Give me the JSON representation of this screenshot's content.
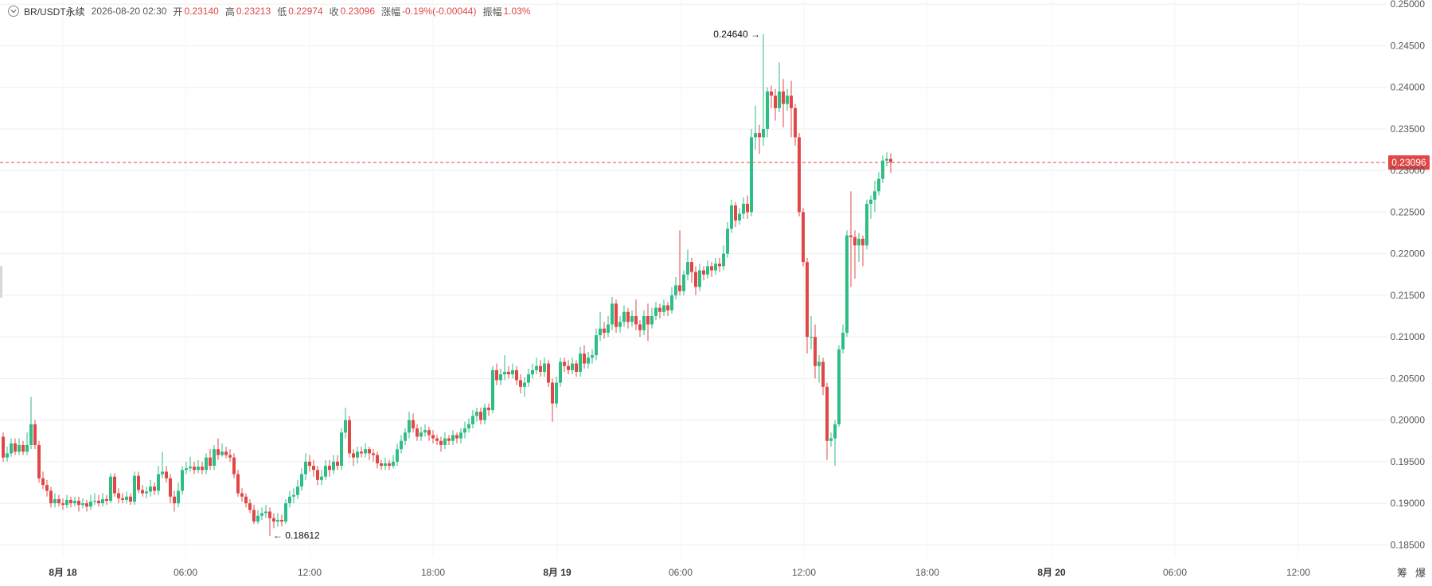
{
  "header": {
    "symbol": "BR/USDT永续",
    "datetime": "2026-08-20 02:30",
    "open_label": "开",
    "open_value": "0.23140",
    "high_label": "高",
    "high_value": "0.23213",
    "low_label": "低",
    "low_value": "0.22974",
    "close_label": "收",
    "close_value": "0.23096",
    "change_label": "涨幅",
    "change_value": "-0.19%(-0.00044)",
    "amplitude_label": "振幅",
    "amplitude_value": "1.03%"
  },
  "footer": {
    "item1": "筹",
    "item2": "爆"
  },
  "colors": {
    "up": "#2ebd85",
    "down": "#e04848",
    "grid": "#eeeeee",
    "axis_text": "#555555"
  },
  "chart_data": {
    "type": "candlestick",
    "ylim": [
      0.1835,
      0.2505
    ],
    "y_ticks": [
      0.185,
      0.19,
      0.195,
      0.2,
      0.205,
      0.21,
      0.215,
      0.22,
      0.225,
      0.23,
      0.235,
      0.24,
      0.245,
      0.25
    ],
    "y_tick_labels": [
      "0.18500",
      "0.19000",
      "0.19500",
      "0.20000",
      "0.20500",
      "0.21000",
      "0.21500",
      "0.22000",
      "0.22500",
      "0.23000",
      "0.23500",
      "0.24000",
      "0.24500",
      "0.25000"
    ],
    "x_ticks": [
      "8月 18",
      "06:00",
      "12:00",
      "18:00",
      "8月 19",
      "06:00",
      "12:00",
      "18:00",
      "8月 20",
      "06:00",
      "12:00"
    ],
    "x_tick_bold": [
      true,
      false,
      false,
      false,
      true,
      false,
      false,
      false,
      true,
      false,
      false
    ],
    "current_price_label": "0.23096",
    "current_price": 0.23096,
    "annotations": [
      {
        "label": "0.24640",
        "value": 0.2464,
        "arrow": "→"
      },
      {
        "label": "0.18612",
        "value": 0.18612,
        "arrow": "←"
      }
    ],
    "candles": [
      [
        0.198,
        0.1955,
        0.1985,
        0.195
      ],
      [
        0.1955,
        0.196,
        0.1968,
        0.195
      ],
      [
        0.196,
        0.1972,
        0.1978,
        0.1956
      ],
      [
        0.1972,
        0.1962,
        0.1978,
        0.1958
      ],
      [
        0.1962,
        0.197,
        0.1978,
        0.1958
      ],
      [
        0.197,
        0.1962,
        0.1975,
        0.1958
      ],
      [
        0.1962,
        0.197,
        0.1985,
        0.1958
      ],
      [
        0.197,
        0.1995,
        0.2028,
        0.1965
      ],
      [
        0.1995,
        0.197,
        0.2,
        0.1965
      ],
      [
        0.197,
        0.193,
        0.1975,
        0.1925
      ],
      [
        0.193,
        0.1922,
        0.1938,
        0.1917
      ],
      [
        0.1922,
        0.1915,
        0.1928,
        0.1908
      ],
      [
        0.1915,
        0.19,
        0.192,
        0.1895
      ],
      [
        0.19,
        0.1905,
        0.1912,
        0.1895
      ],
      [
        0.1905,
        0.19,
        0.191,
        0.1896
      ],
      [
        0.19,
        0.1898,
        0.1906,
        0.1892
      ],
      [
        0.1898,
        0.1904,
        0.191,
        0.1894
      ],
      [
        0.1904,
        0.19,
        0.1908,
        0.1895
      ],
      [
        0.19,
        0.1903,
        0.1908,
        0.1896
      ],
      [
        0.1903,
        0.1898,
        0.1908,
        0.189
      ],
      [
        0.1898,
        0.19,
        0.1906,
        0.1894
      ],
      [
        0.19,
        0.1896,
        0.1904,
        0.189
      ],
      [
        0.1896,
        0.1902,
        0.191,
        0.1892
      ],
      [
        0.1902,
        0.1903,
        0.1912,
        0.1898
      ],
      [
        0.1903,
        0.19,
        0.191,
        0.1896
      ],
      [
        0.19,
        0.1905,
        0.1912,
        0.1896
      ],
      [
        0.1905,
        0.1903,
        0.191,
        0.1898
      ],
      [
        0.1903,
        0.1932,
        0.1936,
        0.19
      ],
      [
        0.1932,
        0.1912,
        0.1936,
        0.1908
      ],
      [
        0.1912,
        0.1906,
        0.1918,
        0.19
      ],
      [
        0.1906,
        0.1904,
        0.1912,
        0.19
      ],
      [
        0.1904,
        0.1908,
        0.1914,
        0.19
      ],
      [
        0.1908,
        0.1902,
        0.1912,
        0.1898
      ],
      [
        0.1902,
        0.1933,
        0.1938,
        0.1898
      ],
      [
        0.1933,
        0.1916,
        0.1938,
        0.1912
      ],
      [
        0.1916,
        0.1912,
        0.1922,
        0.1908
      ],
      [
        0.1912,
        0.1914,
        0.192,
        0.1906
      ],
      [
        0.1914,
        0.192,
        0.1928,
        0.1908
      ],
      [
        0.192,
        0.1915,
        0.1925,
        0.191
      ],
      [
        0.1915,
        0.1935,
        0.1945,
        0.191
      ],
      [
        0.1935,
        0.1938,
        0.1962,
        0.193
      ],
      [
        0.1938,
        0.193,
        0.1945,
        0.1925
      ],
      [
        0.193,
        0.1908,
        0.1935,
        0.19
      ],
      [
        0.1908,
        0.19,
        0.1915,
        0.189
      ],
      [
        0.19,
        0.1915,
        0.1925,
        0.1895
      ],
      [
        0.1915,
        0.194,
        0.1945,
        0.191
      ],
      [
        0.194,
        0.1942,
        0.195,
        0.1935
      ],
      [
        0.1942,
        0.1944,
        0.1956,
        0.1938
      ],
      [
        0.1944,
        0.194,
        0.195,
        0.1935
      ],
      [
        0.194,
        0.1944,
        0.1952,
        0.1936
      ],
      [
        0.1944,
        0.194,
        0.195,
        0.1935
      ],
      [
        0.194,
        0.1955,
        0.196,
        0.1935
      ],
      [
        0.1955,
        0.1945,
        0.1965,
        0.194
      ],
      [
        0.1945,
        0.1965,
        0.197,
        0.194
      ],
      [
        0.1965,
        0.1958,
        0.1978,
        0.1952
      ],
      [
        0.1958,
        0.1962,
        0.1972,
        0.1956
      ],
      [
        0.1962,
        0.1958,
        0.1968,
        0.1954
      ],
      [
        0.1958,
        0.1955,
        0.1965,
        0.195
      ],
      [
        0.1955,
        0.1935,
        0.196,
        0.193
      ],
      [
        0.1935,
        0.1912,
        0.194,
        0.1908
      ],
      [
        0.1912,
        0.1908,
        0.1918,
        0.1902
      ],
      [
        0.1908,
        0.19,
        0.1912,
        0.1895
      ],
      [
        0.19,
        0.1892,
        0.1905,
        0.1888
      ],
      [
        0.1892,
        0.1878,
        0.1898,
        0.1875
      ],
      [
        0.1878,
        0.1885,
        0.1892,
        0.1875
      ],
      [
        0.1885,
        0.1888,
        0.1895,
        0.188
      ],
      [
        0.1888,
        0.189,
        0.1898,
        0.1882
      ],
      [
        0.189,
        0.1882,
        0.1895,
        0.1861
      ],
      [
        0.1882,
        0.1878,
        0.1888,
        0.187
      ],
      [
        0.1878,
        0.188,
        0.1888,
        0.1872
      ],
      [
        0.188,
        0.1878,
        0.1886,
        0.1872
      ],
      [
        0.1878,
        0.19,
        0.1905,
        0.1875
      ],
      [
        0.19,
        0.1908,
        0.1915,
        0.1895
      ],
      [
        0.1908,
        0.191,
        0.1918,
        0.19
      ],
      [
        0.191,
        0.192,
        0.1928,
        0.1905
      ],
      [
        0.192,
        0.1935,
        0.1942,
        0.1915
      ],
      [
        0.1935,
        0.195,
        0.196,
        0.1928
      ],
      [
        0.195,
        0.1945,
        0.1958,
        0.1938
      ],
      [
        0.1945,
        0.194,
        0.1952,
        0.1932
      ],
      [
        0.194,
        0.1928,
        0.1945,
        0.1922
      ],
      [
        0.1928,
        0.1932,
        0.194,
        0.1922
      ],
      [
        0.1932,
        0.1945,
        0.1952,
        0.1928
      ],
      [
        0.1945,
        0.194,
        0.1952,
        0.1932
      ],
      [
        0.194,
        0.195,
        0.1958,
        0.1935
      ],
      [
        0.195,
        0.1945,
        0.1958,
        0.194
      ],
      [
        0.1945,
        0.1985,
        0.199,
        0.194
      ],
      [
        0.1985,
        0.2,
        0.2015,
        0.1978
      ],
      [
        0.2,
        0.196,
        0.2005,
        0.1955
      ],
      [
        0.196,
        0.1955,
        0.1965,
        0.1945
      ],
      [
        0.1955,
        0.1962,
        0.1968,
        0.1948
      ],
      [
        0.1962,
        0.196,
        0.1968,
        0.1955
      ],
      [
        0.196,
        0.1965,
        0.1972,
        0.1955
      ],
      [
        0.1965,
        0.196,
        0.1968,
        0.1952
      ],
      [
        0.196,
        0.1958,
        0.1965,
        0.195
      ],
      [
        0.1958,
        0.1948,
        0.1962,
        0.1942
      ],
      [
        0.1948,
        0.1945,
        0.1952,
        0.194
      ],
      [
        0.1945,
        0.1948,
        0.1955,
        0.194
      ],
      [
        0.1948,
        0.1945,
        0.1952,
        0.194
      ],
      [
        0.1945,
        0.195,
        0.1958,
        0.1942
      ],
      [
        0.195,
        0.1965,
        0.1972,
        0.1945
      ],
      [
        0.1965,
        0.1975,
        0.1982,
        0.196
      ],
      [
        0.1975,
        0.1985,
        0.199,
        0.197
      ],
      [
        0.1985,
        0.2,
        0.201,
        0.1978
      ],
      [
        0.2,
        0.199,
        0.2008,
        0.1985
      ],
      [
        0.199,
        0.198,
        0.1995,
        0.1975
      ],
      [
        0.198,
        0.1985,
        0.1992,
        0.1975
      ],
      [
        0.1985,
        0.1988,
        0.1995,
        0.198
      ],
      [
        0.1988,
        0.1982,
        0.1992,
        0.1975
      ],
      [
        0.1982,
        0.1978,
        0.1988,
        0.1972
      ],
      [
        0.1978,
        0.1975,
        0.1982,
        0.197
      ],
      [
        0.1975,
        0.197,
        0.198,
        0.1962
      ],
      [
        0.197,
        0.1978,
        0.1985,
        0.1965
      ],
      [
        0.1978,
        0.1975,
        0.1982,
        0.197
      ],
      [
        0.1975,
        0.1982,
        0.1988,
        0.197
      ],
      [
        0.1982,
        0.1978,
        0.1985,
        0.1972
      ],
      [
        0.1978,
        0.1985,
        0.199,
        0.1972
      ],
      [
        0.1985,
        0.199,
        0.1998,
        0.1978
      ],
      [
        0.199,
        0.1995,
        0.2002,
        0.1985
      ],
      [
        0.1995,
        0.2005,
        0.2012,
        0.199
      ],
      [
        0.2005,
        0.201,
        0.2015,
        0.1998
      ],
      [
        0.201,
        0.2,
        0.2015,
        0.1995
      ],
      [
        0.2,
        0.2015,
        0.202,
        0.1995
      ],
      [
        0.2015,
        0.2012,
        0.202,
        0.2005
      ],
      [
        0.2012,
        0.206,
        0.2065,
        0.2008
      ],
      [
        0.206,
        0.2048,
        0.2068,
        0.2042
      ],
      [
        0.2048,
        0.2055,
        0.2062,
        0.2042
      ],
      [
        0.2055,
        0.2058,
        0.2078,
        0.2048
      ],
      [
        0.2058,
        0.2055,
        0.2065,
        0.205
      ],
      [
        0.2055,
        0.206,
        0.2068,
        0.205
      ],
      [
        0.206,
        0.2048,
        0.2065,
        0.2042
      ],
      [
        0.2048,
        0.204,
        0.2055,
        0.2032
      ],
      [
        0.204,
        0.2045,
        0.2052,
        0.2028
      ],
      [
        0.2045,
        0.2055,
        0.2062,
        0.204
      ],
      [
        0.2055,
        0.206,
        0.2068,
        0.205
      ],
      [
        0.206,
        0.2065,
        0.2075,
        0.2055
      ],
      [
        0.2065,
        0.2058,
        0.2072,
        0.2052
      ],
      [
        0.2058,
        0.2068,
        0.2075,
        0.2052
      ],
      [
        0.2068,
        0.2045,
        0.2072,
        0.204
      ],
      [
        0.2045,
        0.202,
        0.205,
        0.1998
      ],
      [
        0.202,
        0.2045,
        0.2052,
        0.2015
      ],
      [
        0.2045,
        0.207,
        0.2075,
        0.204
      ],
      [
        0.207,
        0.2065,
        0.2075,
        0.2058
      ],
      [
        0.2065,
        0.206,
        0.2072,
        0.2055
      ],
      [
        0.206,
        0.2068,
        0.2075,
        0.2055
      ],
      [
        0.2068,
        0.2058,
        0.2072,
        0.2052
      ],
      [
        0.2058,
        0.208,
        0.2088,
        0.2052
      ],
      [
        0.208,
        0.2068,
        0.209,
        0.2062
      ],
      [
        0.2068,
        0.2075,
        0.2082,
        0.2062
      ],
      [
        0.2075,
        0.2078,
        0.2085,
        0.2068
      ],
      [
        0.2078,
        0.2102,
        0.211,
        0.2072
      ],
      [
        0.2102,
        0.211,
        0.213,
        0.2095
      ],
      [
        0.211,
        0.2105,
        0.2118,
        0.2098
      ],
      [
        0.2105,
        0.2115,
        0.2125,
        0.21
      ],
      [
        0.2115,
        0.214,
        0.2148,
        0.2108
      ],
      [
        0.214,
        0.2112,
        0.2145,
        0.2105
      ],
      [
        0.2112,
        0.2118,
        0.2125,
        0.2105
      ],
      [
        0.2118,
        0.213,
        0.2138,
        0.2112
      ],
      [
        0.213,
        0.2118,
        0.2135,
        0.211
      ],
      [
        0.2118,
        0.2125,
        0.2132,
        0.2112
      ],
      [
        0.2125,
        0.2115,
        0.2145,
        0.2108
      ],
      [
        0.2115,
        0.2108,
        0.212,
        0.21
      ],
      [
        0.2108,
        0.2125,
        0.2132,
        0.2102
      ],
      [
        0.2125,
        0.2115,
        0.214,
        0.2095
      ],
      [
        0.2115,
        0.2125,
        0.2135,
        0.211
      ],
      [
        0.2125,
        0.2135,
        0.2142,
        0.212
      ],
      [
        0.2135,
        0.213,
        0.214,
        0.2122
      ],
      [
        0.213,
        0.2138,
        0.2145,
        0.2125
      ],
      [
        0.2138,
        0.2132,
        0.2142,
        0.2125
      ],
      [
        0.2132,
        0.215,
        0.216,
        0.2128
      ],
      [
        0.215,
        0.2162,
        0.2172,
        0.2145
      ],
      [
        0.2162,
        0.2155,
        0.2228,
        0.215
      ],
      [
        0.2155,
        0.2175,
        0.218,
        0.215
      ],
      [
        0.2175,
        0.219,
        0.2205,
        0.2168
      ],
      [
        0.219,
        0.2178,
        0.2195,
        0.2165
      ],
      [
        0.2178,
        0.216,
        0.2185,
        0.215
      ],
      [
        0.216,
        0.218,
        0.2188,
        0.2155
      ],
      [
        0.218,
        0.2175,
        0.2185,
        0.2168
      ],
      [
        0.2175,
        0.2185,
        0.2192,
        0.217
      ],
      [
        0.2185,
        0.218,
        0.219,
        0.2172
      ],
      [
        0.218,
        0.2188,
        0.2195,
        0.2175
      ],
      [
        0.2188,
        0.2185,
        0.2195,
        0.2178
      ],
      [
        0.2185,
        0.22,
        0.221,
        0.218
      ],
      [
        0.22,
        0.223,
        0.2238,
        0.2195
      ],
      [
        0.223,
        0.2258,
        0.2265,
        0.2225
      ],
      [
        0.2258,
        0.224,
        0.2262,
        0.2232
      ],
      [
        0.224,
        0.2248,
        0.2255,
        0.2235
      ],
      [
        0.2248,
        0.226,
        0.2268,
        0.2242
      ],
      [
        0.226,
        0.225,
        0.227,
        0.2242
      ],
      [
        0.225,
        0.234,
        0.235,
        0.2245
      ],
      [
        0.234,
        0.2345,
        0.2378,
        0.2325
      ],
      [
        0.2345,
        0.234,
        0.2355,
        0.232
      ],
      [
        0.234,
        0.235,
        0.2464,
        0.233
      ],
      [
        0.235,
        0.2395,
        0.24,
        0.234
      ],
      [
        0.2395,
        0.239,
        0.2402,
        0.2375
      ],
      [
        0.239,
        0.2375,
        0.2398,
        0.236
      ],
      [
        0.2375,
        0.2395,
        0.243,
        0.237
      ],
      [
        0.2395,
        0.238,
        0.241,
        0.2352
      ],
      [
        0.238,
        0.239,
        0.2398,
        0.2372
      ],
      [
        0.239,
        0.2375,
        0.2408,
        0.234
      ],
      [
        0.2375,
        0.234,
        0.238,
        0.233
      ],
      [
        0.234,
        0.225,
        0.2345,
        0.2245
      ],
      [
        0.225,
        0.219,
        0.2255,
        0.2185
      ],
      [
        0.219,
        0.21,
        0.2195,
        0.208
      ],
      [
        0.21,
        0.21,
        0.2125,
        0.2085
      ],
      [
        0.21,
        0.2065,
        0.2115,
        0.205
      ],
      [
        0.2065,
        0.207,
        0.2078,
        0.2045
      ],
      [
        0.207,
        0.204,
        0.2075,
        0.203
      ],
      [
        0.204,
        0.1975,
        0.2045,
        0.1952
      ],
      [
        0.1975,
        0.1978,
        0.1985,
        0.1968
      ],
      [
        0.1978,
        0.1995,
        0.2,
        0.1945
      ],
      [
        0.1995,
        0.2085,
        0.209,
        0.1992
      ],
      [
        0.2085,
        0.2105,
        0.2115,
        0.208
      ],
      [
        0.2105,
        0.2222,
        0.2228,
        0.21
      ],
      [
        0.2222,
        0.222,
        0.2275,
        0.216
      ],
      [
        0.222,
        0.221,
        0.2228,
        0.217
      ],
      [
        0.221,
        0.2218,
        0.2225,
        0.219
      ],
      [
        0.2218,
        0.221,
        0.2222,
        0.2185
      ],
      [
        0.221,
        0.226,
        0.2265,
        0.2205
      ],
      [
        0.226,
        0.2265,
        0.227,
        0.2242
      ],
      [
        0.2265,
        0.2275,
        0.2288,
        0.225
      ],
      [
        0.2275,
        0.229,
        0.2298,
        0.227
      ],
      [
        0.229,
        0.2312,
        0.2318,
        0.2285
      ],
      [
        0.2312,
        0.2314,
        0.2322,
        0.2305
      ],
      [
        0.2314,
        0.231,
        0.2321,
        0.2297
      ]
    ]
  }
}
